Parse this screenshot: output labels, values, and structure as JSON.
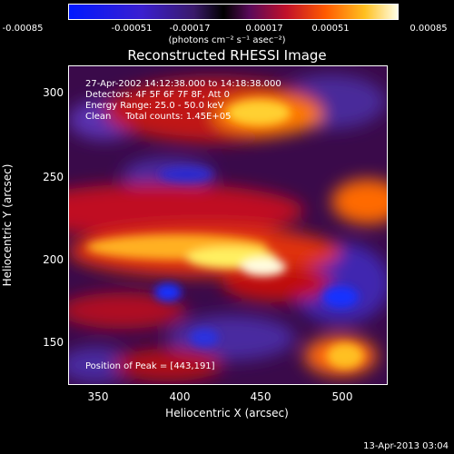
{
  "colorbar": {
    "ticks": [
      "-0.00085",
      "-0.00051",
      "-0.00017",
      "0.00017",
      "0.00051",
      "0.00085"
    ],
    "units": "(photons cm⁻² s⁻¹ asec⁻²)"
  },
  "title": "Reconstructed RHESSI Image",
  "annotations": {
    "time_range": "27-Apr-2002 14:12:38.000 to 14:18:38.000",
    "detectors": "Detectors: 4F 5F 6F 7F 8F, Att 0",
    "energy": "Energy Range: 25.0 - 50.0 keV",
    "clean": "Clean     Total counts: 1.45E+05",
    "peak": "Position of Peak = [443,191]"
  },
  "axes": {
    "xlabel": "Heliocentric X (arcsec)",
    "ylabel": "Heliocentric Y (arcsec)",
    "xticks": [
      "350",
      "400",
      "450",
      "500"
    ],
    "yticks": [
      "300",
      "250",
      "200",
      "150"
    ]
  },
  "footer": "13-Apr-2013 03:04"
}
